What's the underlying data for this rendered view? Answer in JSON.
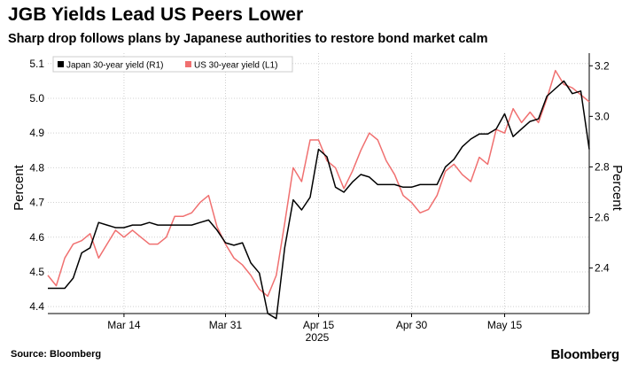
{
  "title": "JGB Yields Lead US Peers Lower",
  "subtitle": "Sharp drop follows plans by Japanese authorities to restore bond market calm",
  "source": "Source: Bloomberg",
  "brand": "Bloomberg",
  "colors": {
    "japan": "#000000",
    "us": "#f07070",
    "grid": "#d0d0d0",
    "zero_line": "#000000"
  },
  "chart_data": {
    "type": "line",
    "xlabel": "2025",
    "ylabel_left": "Percent",
    "ylabel_right": "Percent",
    "x_ticks": [
      "Mar 14",
      "Mar 31",
      "Apr 15",
      "Apr 30",
      "May 15"
    ],
    "x_tick_index": [
      9,
      21,
      32,
      43,
      54
    ],
    "ylim_left": [
      4.38,
      5.13
    ],
    "yticks_left": [
      4.4,
      4.5,
      4.6,
      4.7,
      4.8,
      4.9,
      5.0,
      5.1
    ],
    "ytick_labels_left": [
      "4.4",
      "4.5",
      "4.6",
      "4.7",
      "4.8",
      "4.9",
      "5.0",
      "5.1"
    ],
    "ylim_right": [
      2.22,
      3.25
    ],
    "yticks_right": [
      2.4,
      2.6,
      2.8,
      3.0,
      3.2
    ],
    "ytick_labels_right": [
      "2.4",
      "2.6",
      "2.8",
      "3.0",
      "3.2"
    ],
    "legend": [
      {
        "name": "Japan 30-year yield (R1)",
        "key": "japan"
      },
      {
        "name": "US 30-year yield (L1)",
        "key": "us"
      }
    ],
    "series": [
      {
        "name": "Japan 30-year yield (R1)",
        "axis": "right",
        "key": "japan",
        "values": [
          2.32,
          2.32,
          2.32,
          2.36,
          2.46,
          2.48,
          2.58,
          2.57,
          2.56,
          2.56,
          2.57,
          2.57,
          2.58,
          2.57,
          2.57,
          2.57,
          2.57,
          2.57,
          2.58,
          2.59,
          2.55,
          2.5,
          2.49,
          2.5,
          2.42,
          2.38,
          2.22,
          2.2,
          2.48,
          2.67,
          2.63,
          2.68,
          2.87,
          2.84,
          2.72,
          2.7,
          2.74,
          2.77,
          2.76,
          2.73,
          2.73,
          2.73,
          2.72,
          2.72,
          2.73,
          2.73,
          2.73,
          2.8,
          2.83,
          2.88,
          2.91,
          2.93,
          2.93,
          2.95,
          3.01,
          2.92,
          2.95,
          2.98,
          2.99,
          3.08,
          3.11,
          3.14,
          3.09,
          3.1,
          2.87
        ]
      },
      {
        "name": "US 30-year yield (L1)",
        "axis": "left",
        "key": "us",
        "values": [
          4.49,
          4.46,
          4.54,
          4.58,
          4.59,
          4.61,
          4.54,
          4.58,
          4.62,
          4.6,
          4.62,
          4.6,
          4.58,
          4.58,
          4.6,
          4.66,
          4.66,
          4.67,
          4.7,
          4.72,
          4.63,
          4.58,
          4.54,
          4.52,
          4.49,
          4.45,
          4.43,
          4.49,
          4.64,
          4.8,
          4.76,
          4.88,
          4.88,
          4.82,
          4.8,
          4.74,
          4.79,
          4.85,
          4.9,
          4.88,
          4.82,
          4.78,
          4.72,
          4.7,
          4.67,
          4.68,
          4.72,
          4.79,
          4.81,
          4.78,
          4.76,
          4.83,
          4.81,
          4.91,
          4.9,
          4.97,
          4.93,
          4.96,
          4.93,
          5.0,
          5.08,
          5.04,
          5.03,
          5.01,
          4.99
        ]
      }
    ]
  }
}
